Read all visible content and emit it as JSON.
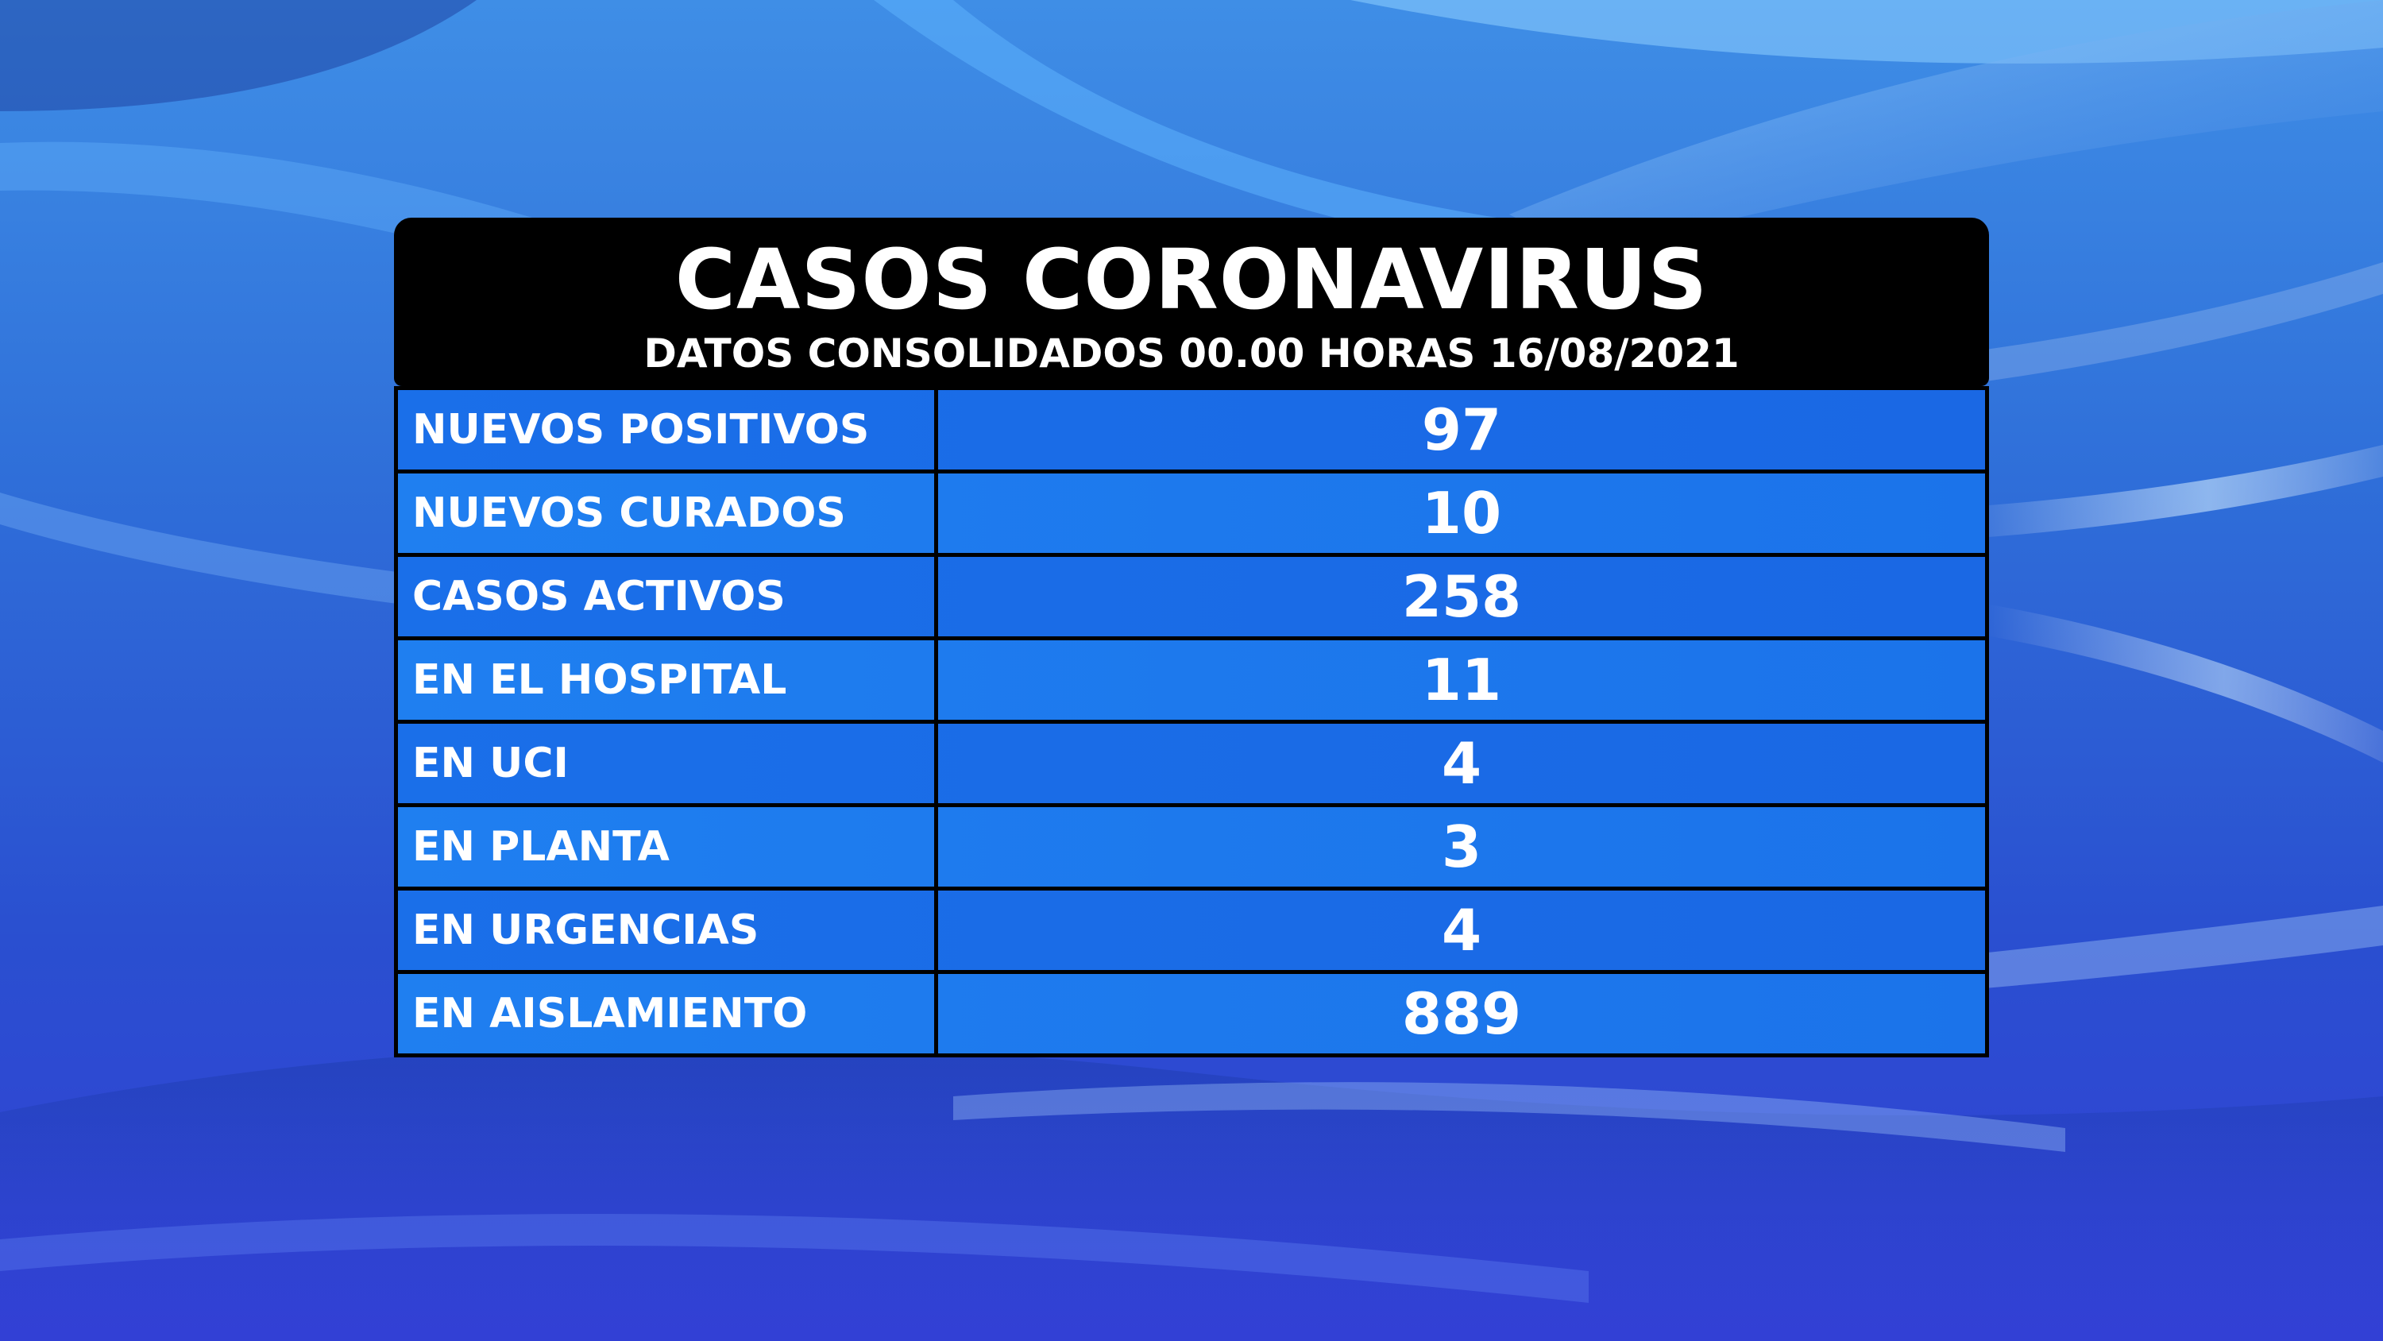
{
  "header": {
    "title": "CASOS CORONAVIRUS",
    "subtitle": "DATOS CONSOLIDADOS 00.00 HORAS 16/08/2021"
  },
  "rows": [
    {
      "label": "NUEVOS POSITIVOS",
      "value": "97"
    },
    {
      "label": "NUEVOS CURADOS",
      "value": "10"
    },
    {
      "label": "CASOS ACTIVOS",
      "value": "258"
    },
    {
      "label": "EN EL HOSPITAL",
      "value": "11"
    },
    {
      "label": "EN UCI",
      "value": "4"
    },
    {
      "label": "EN PLANTA",
      "value": "3"
    },
    {
      "label": "EN URGENCIAS",
      "value": "4"
    },
    {
      "label": "EN AISLAMIENTO",
      "value": "889"
    }
  ],
  "colors": {
    "header_bg": "#000000",
    "row_bg": "#1a70e8",
    "text": "#ffffff",
    "background": "#2f6fd9"
  }
}
